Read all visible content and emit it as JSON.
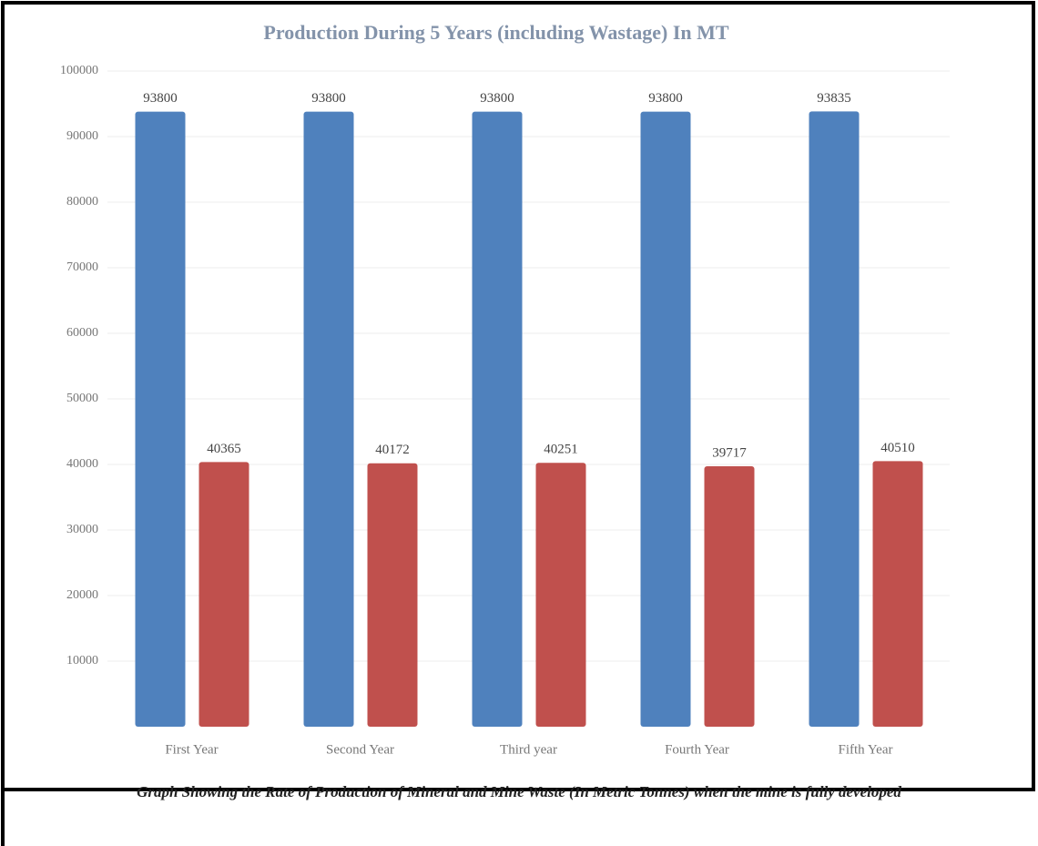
{
  "chart_data": {
    "type": "bar",
    "title": "Production During 5 Years (including Wastage) In MT",
    "caption": "Graph Showing the Rate of Production of Mineral and Mine Waste (In Metric Tonnes) when the mine is fully developed",
    "categories": [
      "First Year",
      "Second Year",
      "Third year",
      "Fourth Year",
      "Fifth Year"
    ],
    "series": [
      {
        "color": "#4f81bd",
        "values": [
          93800,
          93800,
          93800,
          93800,
          93835
        ]
      },
      {
        "color": "#c0504d",
        "values": [
          40365,
          40172,
          40251,
          39717,
          40510
        ]
      }
    ],
    "ylim": [
      0,
      100000
    ],
    "yticks": [
      10000,
      20000,
      30000,
      40000,
      50000,
      60000,
      70000,
      80000,
      90000,
      100000
    ],
    "grid": true
  }
}
